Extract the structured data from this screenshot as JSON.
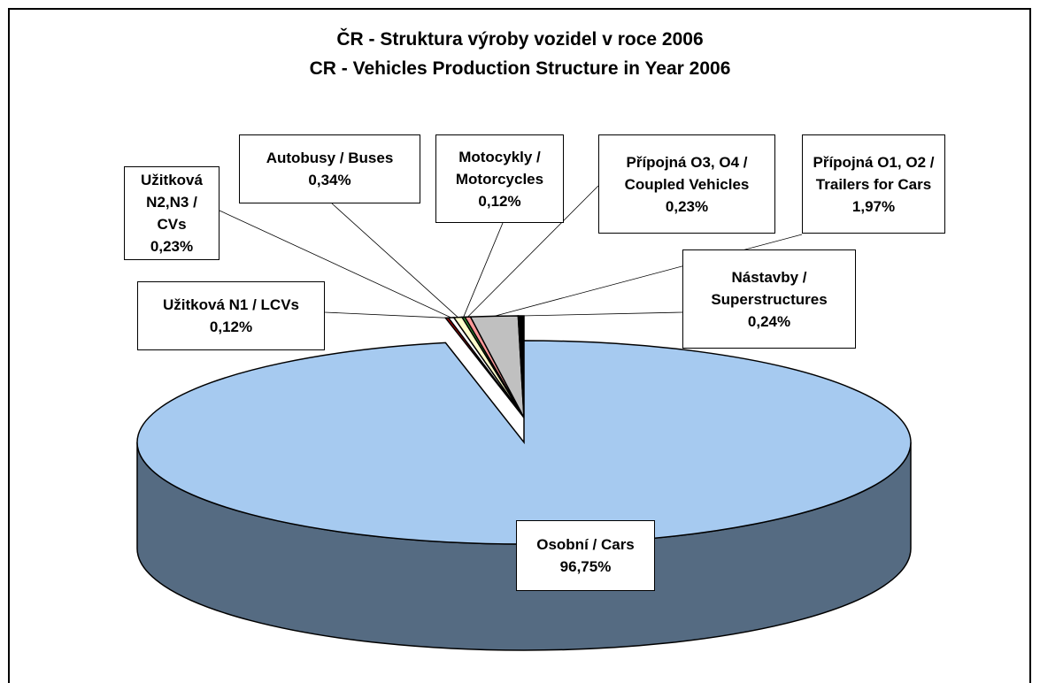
{
  "chart_data": {
    "type": "pie",
    "title": "ČR - Struktura výroby vozidel v roce 2006",
    "subtitle": "CR - Vehicles Production Structure in Year 2006",
    "categories": [
      "Užitková N1 / LCVs",
      "Užitková N2,N3 / CVs",
      "Autobusy / Buses",
      "Motocykly / Motorcycles",
      "Přípojná O3, O4 / Coupled Vehicles",
      "Přípojná O1, O2 / Trailers for Cars",
      "Nástavby / Superstructures",
      "Osobní / Cars"
    ],
    "values": [
      0.12,
      0.23,
      0.34,
      0.12,
      0.23,
      1.97,
      0.24,
      96.75
    ],
    "value_labels": [
      "0,12%",
      "0,23%",
      "0,34%",
      "0,12%",
      "0,23%",
      "1,97%",
      "0,24%",
      "96,75%"
    ],
    "colors": [
      "#c00000",
      "#ffffff",
      "#ffffcc",
      "#339933",
      "#ff9999",
      "#c0c0c0",
      "#000000",
      "#a6caf0"
    ],
    "side_color": "#556b82"
  }
}
